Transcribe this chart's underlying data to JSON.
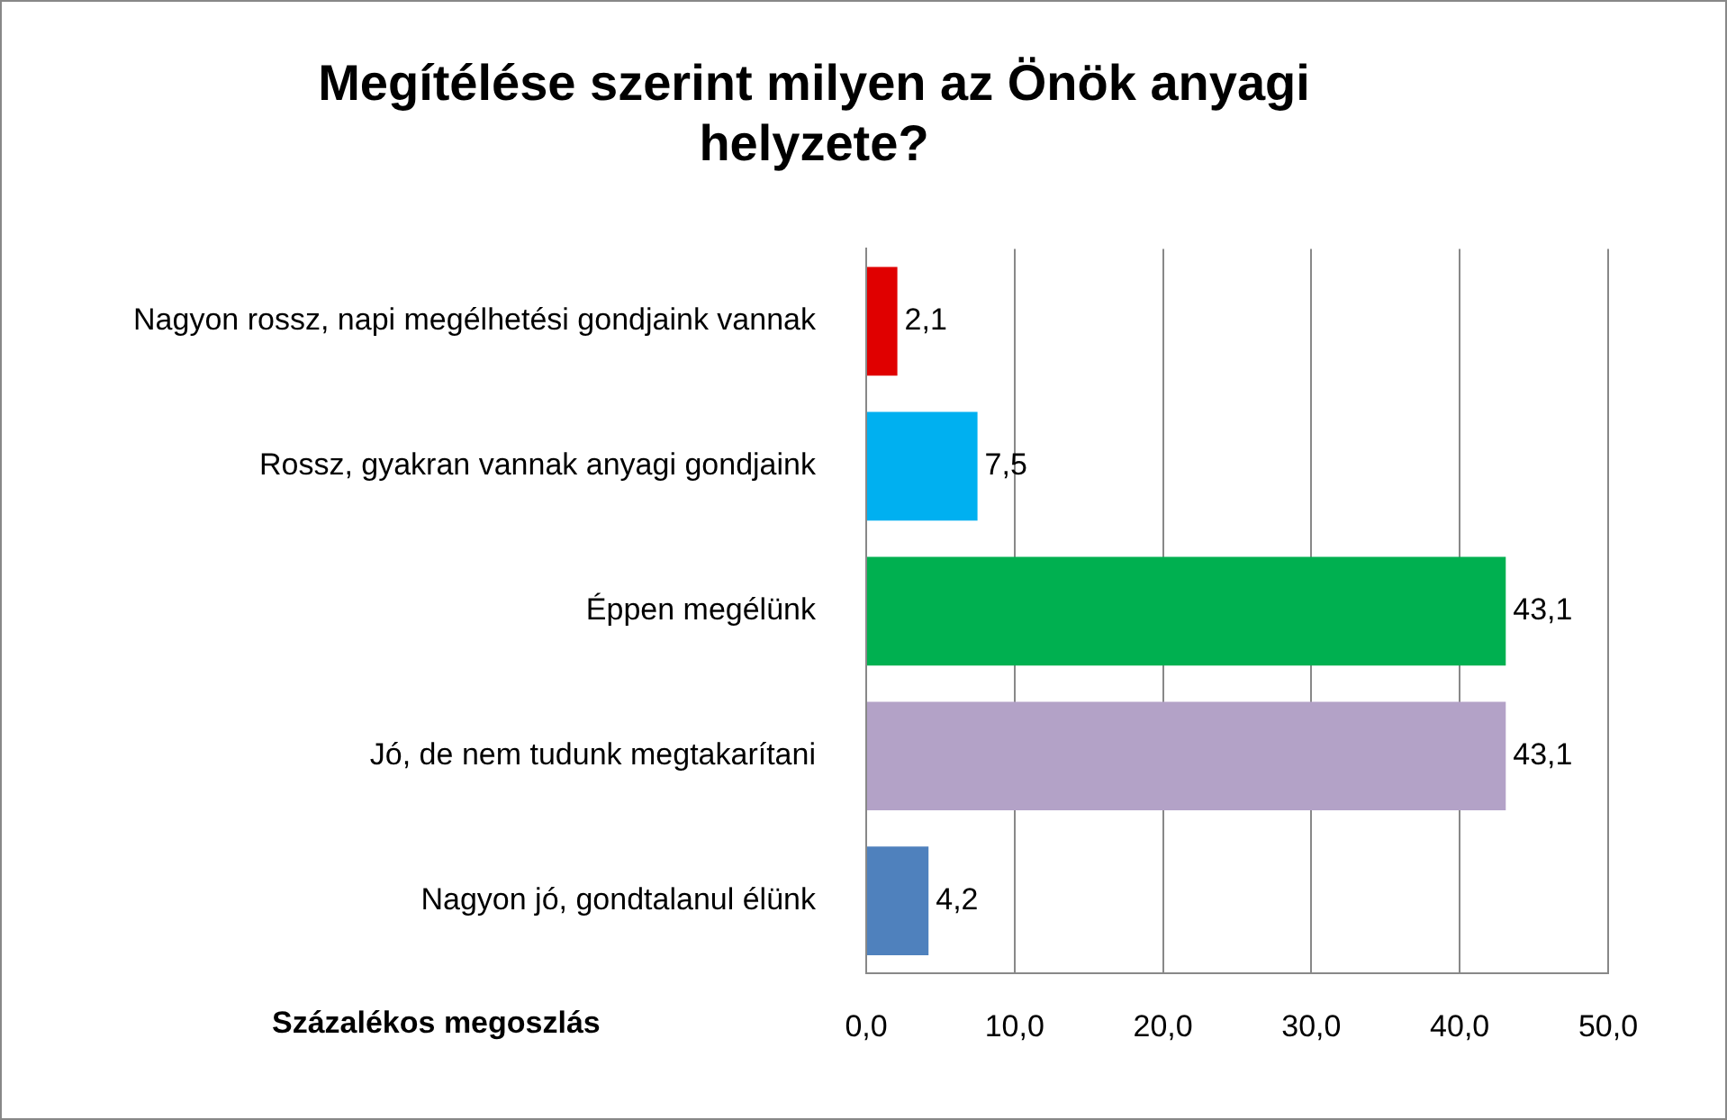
{
  "chart_data": {
    "type": "bar",
    "orientation": "horizontal",
    "title": "Megítélése szerint milyen az Önök anyagi helyzete?",
    "xlabel": "Százalékos megoszlás",
    "categories": [
      "Nagyon rossz, napi megélhetési gondjaink vannak",
      "Rossz, gyakran vannak anyagi gondjaink",
      "Éppen megélünk",
      "Jó, de nem tudunk megtakarítani",
      "Nagyon jó, gondtalanul élünk"
    ],
    "values": [
      2.1,
      7.5,
      43.1,
      43.1,
      4.2
    ],
    "colors": [
      "#e00000",
      "#00b0f0",
      "#00b050",
      "#b3a2c7",
      "#4f81bd"
    ],
    "value_labels": [
      "2,1",
      "7,5",
      "43,1",
      "43,1",
      "4,2"
    ],
    "xlim": [
      0,
      50
    ],
    "xticks": [
      {
        "value": 0,
        "label": "0,0"
      },
      {
        "value": 10,
        "label": "10,0"
      },
      {
        "value": 20,
        "label": "20,0"
      },
      {
        "value": 30,
        "label": "30,0"
      },
      {
        "value": 40,
        "label": "40,0"
      },
      {
        "value": 50,
        "label": "50,0"
      }
    ],
    "grid": "x",
    "legend": false
  }
}
